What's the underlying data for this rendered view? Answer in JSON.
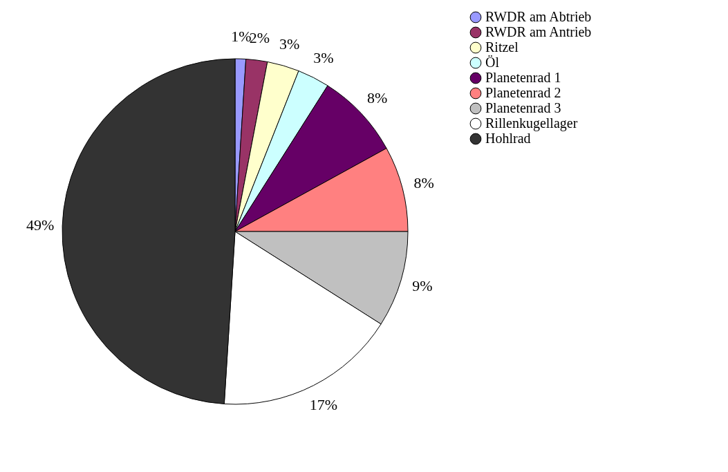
{
  "chart_data": {
    "type": "pie",
    "categories": [
      "RWDR am Abtrieb",
      "RWDR am Antrieb",
      "Ritzel",
      "Öl",
      "Planetenrad 1",
      "Planetenrad 2",
      "Planetenrad 3",
      "Rillenkugellager",
      "Hohlrad"
    ],
    "values": [
      1,
      2,
      3,
      3,
      8,
      8,
      9,
      17,
      49
    ],
    "colors": [
      "#9999ff",
      "#993366",
      "#ffffcc",
      "#ccffff",
      "#660066",
      "#ff8080",
      "#c0c0c0",
      "#ffffff",
      "#333333"
    ],
    "value_labels": [
      "1%",
      "2%",
      "3%",
      "3%",
      "8%",
      "8%",
      "9%",
      "17%",
      "49%"
    ],
    "legend": "right"
  }
}
